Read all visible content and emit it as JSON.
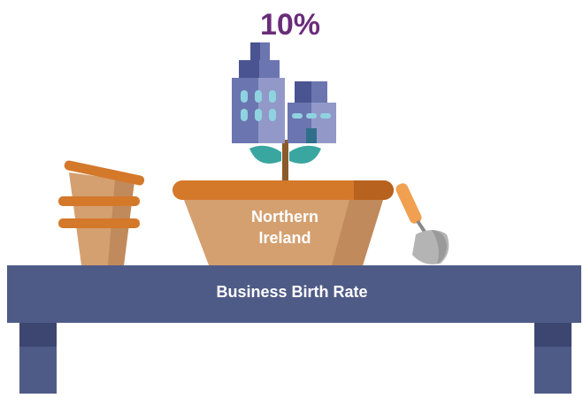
{
  "headline": "10%",
  "pot_label": [
    "Northern",
    "Ireland"
  ],
  "table_label": "Business Birth Rate"
}
